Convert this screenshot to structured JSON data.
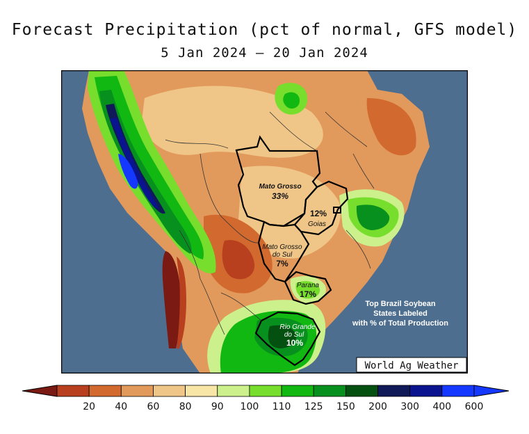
{
  "title": "Forecast Precipitation (pct of normal, GFS model)",
  "subtitle": "5 Jan 2024 — 20 Jan 2024",
  "credit": "World Ag Weather",
  "note": [
    "Top Brazil Soybean",
    "States Labeled",
    "with % of Total Production"
  ],
  "states": [
    {
      "name": "Mato Grosso",
      "pct": "33%"
    },
    {
      "name": "Goias",
      "pct": "12%"
    },
    {
      "name_lines": [
        "Mato Grosso",
        "do Sul"
      ],
      "pct": "7%"
    },
    {
      "name": "Parana",
      "pct": "17%"
    },
    {
      "name_lines": [
        "Rio Grande",
        "do Sul"
      ],
      "pct": "10%"
    }
  ],
  "legend": {
    "ticks": [
      "20",
      "40",
      "60",
      "80",
      "90",
      "100",
      "110",
      "125",
      "150",
      "200",
      "300",
      "400",
      "600"
    ],
    "colors": {
      "c0": "#7a1a12",
      "c1": "#b8401e",
      "c2": "#d2692e",
      "c3": "#e29a5c",
      "c4": "#efc688",
      "c5": "#f8e6a6",
      "c6": "#ccf08c",
      "c7": "#78de2e",
      "c8": "#12b812",
      "c9": "#08901e",
      "c10": "#045010",
      "c11": "#101a58",
      "c12": "#0a148e",
      "c13": "#1438ff"
    }
  },
  "ocean_color": "#4e6e90"
}
